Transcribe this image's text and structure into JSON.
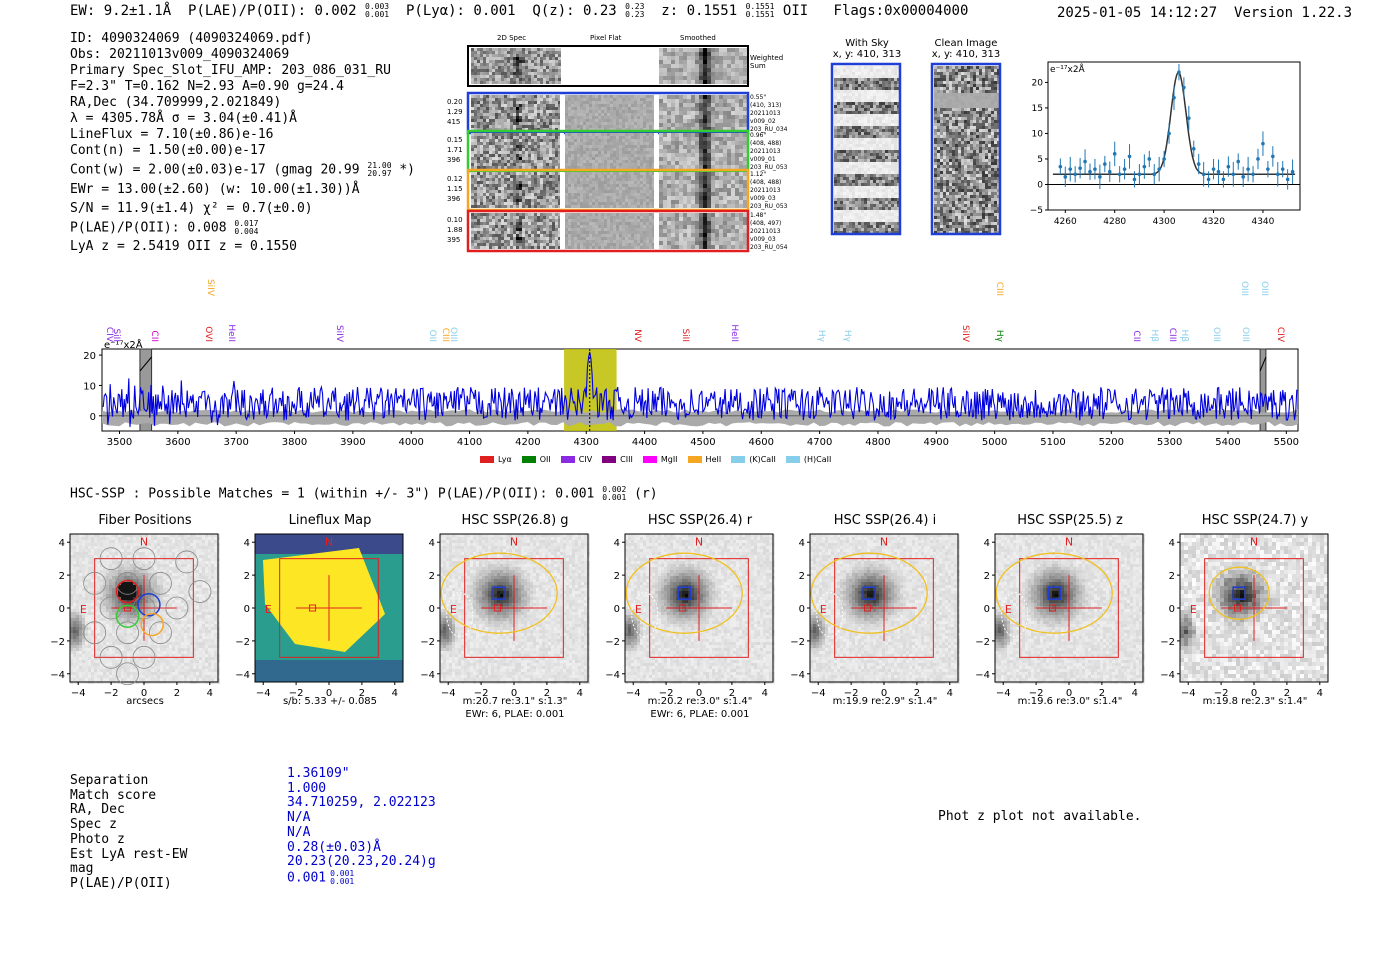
{
  "header": {
    "ew": "EW: 9.2±1.1Å",
    "plae": "P(LAE)/P(OII): 0.002",
    "plae_hi": "0.003",
    "plae_lo": "0.001",
    "plya": "P(Lyα): 0.001",
    "qz": "Q(z): 0.23",
    "qz_hi": "0.23",
    "qz_lo": "0.23",
    "z": "z: 0.1551",
    "z_hi": "0.1551",
    "z_lo": "0.1551",
    "z_tag": "OII",
    "flags": "Flags:0x00004000",
    "datetime": "2025-01-05 14:12:27",
    "version": "Version 1.22.3"
  },
  "info": {
    "id": "ID: 4090324069 (4090324069.pdf)",
    "obs": "Obs: 20211013v009_4090324069",
    "primary": "Primary Spec_Slot_IFU_AMP: 203_086_031_RU",
    "fparams": "F=2.3\"  T=0.162  N=2.93  A=0.90  g=24.4",
    "radec": "RA,Dec (34.709999,2.021849)",
    "lambda": "λ = 4305.78Å  σ = 3.04(±0.41)Å",
    "lineflux": "LineFlux = 7.10(±0.86)e-16",
    "contn": "Cont(n) = 1.50(±0.00)e-17",
    "contw": "Cont(w) = 2.00(±0.03)e-17 (gmag 20.99",
    "contw_hi": "21.00",
    "contw_lo": "20.97",
    "contw_end": "*)",
    "ewr": "EWr = 13.00(±2.60) (w: 10.00(±1.30))Å",
    "sn": "S/N = 11.9(±1.4)  χ² = 0.7(±0.0)",
    "plae2": "P(LAE)/P(OII): 0.008",
    "plae2_hi": "0.017",
    "plae2_lo": "0.004",
    "lyaz": "LyA z = 2.5419  OII z = 0.1550"
  },
  "cutouts": {
    "headers": [
      "2D Spec",
      "Pixel Flat",
      "Smoothed"
    ],
    "weighted": "Weighted Sum",
    "rows": [
      {
        "l1": "0.20",
        "l2": "1.29",
        "l3": "415",
        "r1": "0.55\"",
        "r2": "(410, 313)",
        "r3": "20211013",
        "r4": "v009_02",
        "r5": "203_RU_034",
        "color": "#1f3fd6"
      },
      {
        "l1": "0.15",
        "l2": "1.71",
        "l3": "396",
        "r1": "0.96\"",
        "r2": "(408, 488)",
        "r3": "20211013",
        "r4": "v009_01",
        "r5": "203_RU_053",
        "color": "#33cc33"
      },
      {
        "l1": "0.12",
        "l2": "1.15",
        "l3": "396",
        "r1": "1.12\"",
        "r2": "(408, 488)",
        "r3": "20211013",
        "r4": "v009_03",
        "r5": "203_RU_053",
        "color": "#f5a623"
      },
      {
        "l1": "0.10",
        "l2": "1.88",
        "l3": "395",
        "r1": "1.48\"",
        "r2": "(408, 497)",
        "r3": "20211013",
        "r4": "v009_03",
        "r5": "203_RU_054",
        "color": "#e02020"
      }
    ]
  },
  "sky": {
    "with_sky": "With Sky",
    "with_sky_xy": "x, y: 410, 313",
    "clean": "Clean Image",
    "clean_xy": "x, y: 410, 313"
  },
  "lineprofile": {
    "unit": "e⁻¹⁷x2Å",
    "xticks": [
      "4260",
      "4280",
      "4300",
      "4320",
      "4340"
    ],
    "yticks": [
      "20",
      "15",
      "10",
      "5",
      "0",
      "−5"
    ]
  },
  "spectrum_labels": [
    {
      "name": "CIV",
      "color": "#8a2be2",
      "row": 1
    },
    {
      "name": "SiII",
      "color": "#8a2be2",
      "row": 1
    },
    {
      "name": "CII",
      "color": "#cc00cc",
      "row": 1
    },
    {
      "name": "SiIV",
      "color": "#f5a623",
      "row": 0
    },
    {
      "name": "OVI",
      "color": "#e02020",
      "row": 1
    },
    {
      "name": "HeII",
      "color": "#8a2be2",
      "row": 1
    },
    {
      "name": "SiIV",
      "color": "#8a2be2",
      "row": 1
    },
    {
      "name": "OII",
      "color": "#87ceeb",
      "row": 1
    },
    {
      "name": "CIII",
      "color": "#f5a623",
      "row": 1
    },
    {
      "name": "OIII",
      "color": "#87ceeb",
      "row": 1
    },
    {
      "name": "NV",
      "color": "#e02020",
      "row": 1
    },
    {
      "name": "SiII",
      "color": "#e02020",
      "row": 1
    },
    {
      "name": "HeII",
      "color": "#8a2be2",
      "row": 1
    },
    {
      "name": "Hγ",
      "color": "#87ceeb",
      "row": 1
    },
    {
      "name": "Hγ",
      "color": "#87ceeb",
      "row": 1
    },
    {
      "name": "SiIV",
      "color": "#e02020",
      "row": 1
    },
    {
      "name": "CIII",
      "color": "#f5a623",
      "row": 0
    },
    {
      "name": "Hγ",
      "color": "#008000",
      "row": 1
    },
    {
      "name": "CII",
      "color": "#8a2be2",
      "row": 1
    },
    {
      "name": "Hβ",
      "color": "#87ceeb",
      "row": 1
    },
    {
      "name": "CIII",
      "color": "#8a2be2",
      "row": 1
    },
    {
      "name": "Hβ",
      "color": "#87ceeb",
      "row": 1
    },
    {
      "name": "OIII",
      "color": "#87ceeb",
      "row": 1
    },
    {
      "name": "OIII",
      "color": "#87ceeb",
      "row": 1
    },
    {
      "name": "OIII",
      "color": "#87ceeb",
      "row": 0
    },
    {
      "name": "OIII",
      "color": "#87ceeb",
      "row": 0
    },
    {
      "name": "CIV",
      "color": "#e02020",
      "row": 1
    }
  ],
  "legend": [
    {
      "name": "Lyα",
      "color": "#e02020"
    },
    {
      "name": "OII",
      "color": "#008000"
    },
    {
      "name": "CIV",
      "color": "#8a2be2"
    },
    {
      "name": "CIII",
      "color": "#800080"
    },
    {
      "name": "MgII",
      "color": "#ff00ff"
    },
    {
      "name": "HeII",
      "color": "#f5a623"
    },
    {
      "name": "(K)CaII",
      "color": "#87ceeb"
    },
    {
      "name": "(H)CaII",
      "color": "#87ceeb"
    }
  ],
  "chart_data": [
    {
      "type": "scatter",
      "title": "",
      "ylabel": "e⁻¹⁷x2Å",
      "xlim": [
        4253,
        4355
      ],
      "ylim": [
        -5,
        24
      ],
      "x": [
        4258,
        4260,
        4262,
        4264,
        4266,
        4268,
        4270,
        4272,
        4274,
        4276,
        4278,
        4280,
        4282,
        4284,
        4286,
        4288,
        4290,
        4292,
        4294,
        4296,
        4298,
        4300,
        4302,
        4304,
        4306,
        4308,
        4310,
        4312,
        4314,
        4316,
        4318,
        4320,
        4322,
        4324,
        4326,
        4328,
        4330,
        4332,
        4334,
        4336,
        4338,
        4340,
        4342,
        4344,
        4346,
        4348,
        4350,
        4352
      ],
      "y": [
        3.5,
        1.5,
        3.0,
        2.0,
        3.2,
        4.5,
        2.5,
        3.0,
        1.5,
        4.0,
        2.5,
        6.0,
        2.0,
        3.0,
        5.5,
        1.0,
        2.0,
        3.5,
        5.0,
        2.0,
        3.0,
        5.0,
        10.0,
        17.0,
        22.0,
        19.0,
        13.0,
        7.0,
        4.0,
        2.0,
        1.0,
        3.0,
        2.5,
        1.0,
        3.5,
        2.0,
        4.5,
        1.5,
        3.0,
        2.0,
        5.0,
        8.0,
        3.0,
        5.5,
        2.0,
        3.0,
        1.0,
        2.5
      ],
      "fit": {
        "amplitude": 20.0,
        "center": 4305.8,
        "sigma": 3.04,
        "continuum": 2.0
      },
      "xticks": [
        4260,
        4280,
        4300,
        4320,
        4340
      ],
      "yticks": [
        -5,
        0,
        5,
        10,
        15,
        20
      ]
    },
    {
      "type": "line",
      "title": "",
      "ylabel": "e⁻¹⁷x2Å",
      "xlim": [
        3470,
        5520
      ],
      "ylim": [
        -5,
        22
      ],
      "xticks": [
        3500,
        3600,
        3700,
        3800,
        3900,
        4000,
        4100,
        4200,
        4300,
        4400,
        4500,
        4600,
        4700,
        4800,
        4900,
        5000,
        5100,
        5200,
        5300,
        5400,
        5500
      ],
      "yticks": [
        0,
        10,
        20
      ],
      "peak_wavelength": 4306,
      "peak_value": 21,
      "highlight_range": [
        4262,
        4352
      ],
      "masked_ranges": [
        [
          3535,
          3555
        ],
        [
          5455,
          5465
        ]
      ],
      "series": [
        {
          "name": "spectrum",
          "color": "#0000dd",
          "noise_amplitude": 5.5,
          "baseline": 4
        }
      ]
    }
  ],
  "hsc": {
    "title": "HSC-SSP : Possible Matches = 1 (within +/- 3\")  P(LAE)/P(OII): 0.001",
    "title_hi": "0.002",
    "title_lo": "0.001",
    "title_band": "(r)",
    "panels": [
      {
        "title": "Fiber Positions",
        "cap1": "arcsecs",
        "cap2": ""
      },
      {
        "title": "Lineflux Map",
        "cap1": "s/b: 5.33 +/- 0.085",
        "cap2": ""
      },
      {
        "title": "HSC SSP(26.8) g",
        "cap1": "m:20.7  re:3.1\"  s:1.3\"",
        "cap2": "EWr: 6, PLAE: 0.001"
      },
      {
        "title": "HSC SSP(26.4) r",
        "cap1": "m:20.2  re:3.0\"  s:1.4\"",
        "cap2": "EWr: 6, PLAE: 0.001"
      },
      {
        "title": "HSC SSP(26.4) i",
        "cap1": "m:19.9  re:2.9\"  s:1.4\"",
        "cap2": ""
      },
      {
        "title": "HSC SSP(25.5) z",
        "cap1": "m:19.6  re:3.0\"  s:1.4\"",
        "cap2": ""
      },
      {
        "title": "HSC SSP(24.7) y",
        "cap1": "m:19.8  re:2.3\"  s:1.4\"",
        "cap2": ""
      }
    ],
    "yticks": [
      "4",
      "2",
      "0",
      "−2",
      "−4"
    ],
    "xticks": [
      "−4",
      "−2",
      "0",
      "2",
      "4"
    ],
    "north": "N",
    "east": "E"
  },
  "summary": {
    "labels": [
      "Separation",
      "Match score",
      "RA, Dec",
      "Spec z",
      "Photo z",
      "Est LyA rest-EW",
      "mag",
      "P(LAE)/P(OII)"
    ],
    "values": [
      "1.36109\"",
      "1.000",
      "34.710259, 2.022123",
      "N/A",
      "N/A",
      "0.28(±0.03)Å",
      "20.23(20.23,20.24)g",
      "0.001"
    ],
    "plae_hi": "0.001",
    "plae_lo": "0.001",
    "photz": "Phot z plot not available."
  }
}
